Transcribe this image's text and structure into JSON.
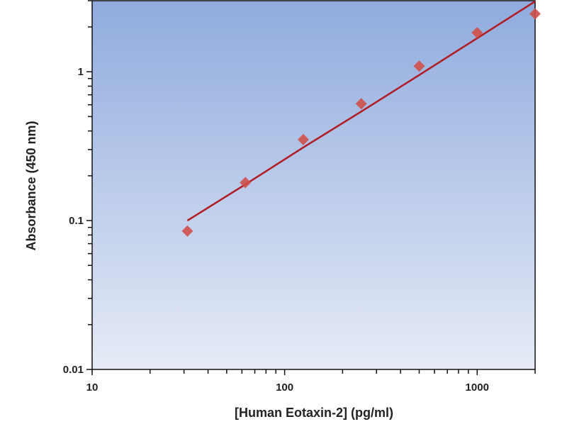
{
  "chart_data": {
    "type": "scatter",
    "title": "",
    "xlabel": "[Human Eotaxin-2] (pg/ml)",
    "ylabel": "Absorbance (450 nm)",
    "xscale": "log",
    "yscale": "log",
    "xlim": [
      10,
      2000
    ],
    "ylim": [
      0.01,
      3
    ],
    "xticks": [
      {
        "value": 10,
        "label": "10"
      },
      {
        "value": 100,
        "label": "100"
      },
      {
        "value": 1000,
        "label": "1000"
      }
    ],
    "yticks": [
      {
        "value": 0.01,
        "label": "0.01"
      },
      {
        "value": 0.1,
        "label": "0.1"
      },
      {
        "value": 1,
        "label": "1"
      }
    ],
    "grid": false,
    "legend": "none",
    "background": "gradient blue (#8fabde top to #e6ebf6 bottom)",
    "series": [
      {
        "marker": "diamond",
        "color": "#d0504a",
        "points": [
          {
            "x": 31.25,
            "y": 0.085
          },
          {
            "x": 62.5,
            "y": 0.18
          },
          {
            "x": 125,
            "y": 0.35
          },
          {
            "x": 250,
            "y": 0.61
          },
          {
            "x": 500,
            "y": 1.09
          },
          {
            "x": 1000,
            "y": 1.83
          },
          {
            "x": 2000,
            "y": 2.45
          }
        ]
      }
    ],
    "fit_line": {
      "type": "power",
      "color": "#b01c24",
      "points": [
        {
          "x": 31.25,
          "y": 0.1
        },
        {
          "x": 62.5,
          "y": 0.175
        },
        {
          "x": 125,
          "y": 0.31
        },
        {
          "x": 250,
          "y": 0.54
        },
        {
          "x": 500,
          "y": 0.95
        },
        {
          "x": 1000,
          "y": 1.68
        },
        {
          "x": 2000,
          "y": 2.97
        }
      ]
    }
  }
}
